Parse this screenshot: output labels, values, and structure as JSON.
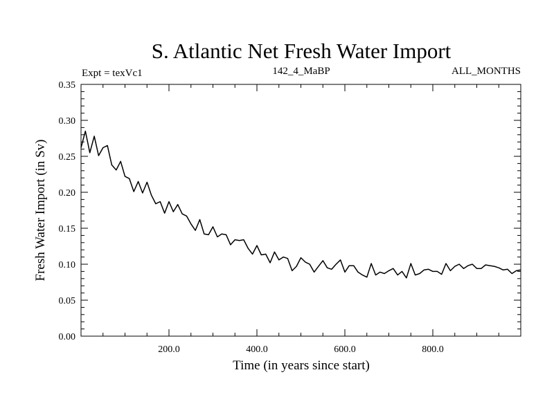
{
  "chart_data": {
    "type": "line",
    "title": "S. Atlantic Net Fresh Water Import",
    "subtitle_left": "Expt = texVc1",
    "subtitle_center": "142_4_MaBP",
    "subtitle_right": "ALL_MONTHS",
    "xlabel": "Time (in years since start)",
    "ylabel": "Fresh Water Import (in Sv)",
    "xlim": [
      0,
      1000
    ],
    "ylim": [
      0,
      0.35
    ],
    "x_ticks": [
      200,
      400,
      600,
      800
    ],
    "x_tick_labels": [
      "200.0",
      "400.0",
      "600.0",
      "800.0"
    ],
    "y_ticks": [
      0,
      0.05,
      0.1,
      0.15,
      0.2,
      0.25,
      0.3,
      0.35
    ],
    "y_tick_labels": [
      "0.00",
      "0.05",
      "0.10",
      "0.15",
      "0.20",
      "0.25",
      "0.30",
      "0.35"
    ],
    "grid": false,
    "series": [
      {
        "name": "Fresh Water Import",
        "color": "#000000",
        "x_start": 0,
        "x_step": 10,
        "values": [
          0.262,
          0.285,
          0.255,
          0.278,
          0.251,
          0.262,
          0.265,
          0.238,
          0.231,
          0.243,
          0.222,
          0.219,
          0.201,
          0.215,
          0.199,
          0.214,
          0.196,
          0.184,
          0.187,
          0.171,
          0.187,
          0.173,
          0.183,
          0.17,
          0.167,
          0.156,
          0.147,
          0.162,
          0.142,
          0.141,
          0.152,
          0.138,
          0.142,
          0.141,
          0.127,
          0.134,
          0.133,
          0.134,
          0.122,
          0.114,
          0.126,
          0.113,
          0.114,
          0.102,
          0.117,
          0.106,
          0.11,
          0.108,
          0.091,
          0.097,
          0.109,
          0.103,
          0.1,
          0.089,
          0.097,
          0.105,
          0.095,
          0.093,
          0.1,
          0.106,
          0.089,
          0.098,
          0.098,
          0.089,
          0.085,
          0.082,
          0.101,
          0.085,
          0.089,
          0.087,
          0.091,
          0.094,
          0.085,
          0.09,
          0.081,
          0.101,
          0.085,
          0.087,
          0.092,
          0.093,
          0.09,
          0.09,
          0.086,
          0.101,
          0.091,
          0.097,
          0.1,
          0.094,
          0.098,
          0.1,
          0.094,
          0.094,
          0.099,
          0.098,
          0.097,
          0.095,
          0.092,
          0.093,
          0.087,
          0.091,
          0.092
        ]
      }
    ]
  }
}
